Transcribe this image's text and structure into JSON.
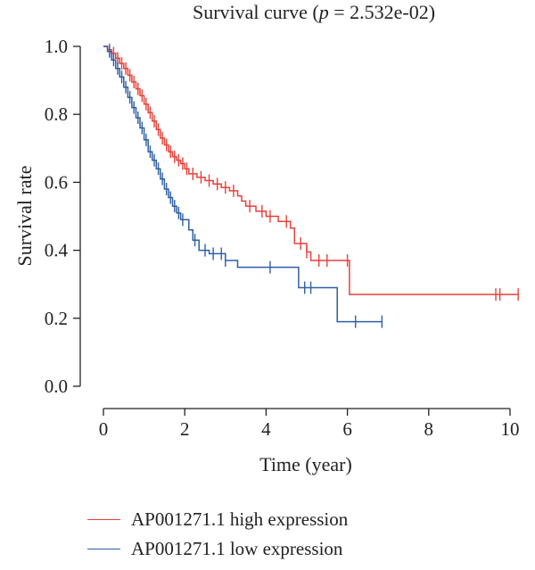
{
  "chart_data": {
    "type": "line",
    "title_prefix": "Survival curve (",
    "title_p": "p",
    "title_suffix": " = 2.532e-02)",
    "xlabel": "Time (year)",
    "ylabel": "Survival rate",
    "xlim": [
      0,
      10.3
    ],
    "ylim": [
      -0.02,
      1.02
    ],
    "xticks": [
      0,
      2,
      4,
      6,
      8,
      10
    ],
    "yticks": [
      0.0,
      0.2,
      0.4,
      0.6,
      0.8,
      1.0
    ],
    "ytick_labels": [
      "0.0",
      "0.2",
      "0.4",
      "0.6",
      "0.8",
      "1.0"
    ],
    "series": [
      {
        "name": "AP001271.1 high expression",
        "color": "#e8413b",
        "steps": [
          [
            0,
            1.0
          ],
          [
            0.1,
            0.99
          ],
          [
            0.2,
            0.98
          ],
          [
            0.3,
            0.965
          ],
          [
            0.4,
            0.95
          ],
          [
            0.5,
            0.935
          ],
          [
            0.6,
            0.915
          ],
          [
            0.7,
            0.895
          ],
          [
            0.8,
            0.875
          ],
          [
            0.9,
            0.855
          ],
          [
            1.0,
            0.83
          ],
          [
            1.1,
            0.805
          ],
          [
            1.2,
            0.78
          ],
          [
            1.3,
            0.755
          ],
          [
            1.4,
            0.73
          ],
          [
            1.5,
            0.71
          ],
          [
            1.6,
            0.69
          ],
          [
            1.7,
            0.675
          ],
          [
            1.8,
            0.665
          ],
          [
            1.9,
            0.655
          ],
          [
            2.0,
            0.64
          ],
          [
            2.1,
            0.625
          ],
          [
            2.3,
            0.615
          ],
          [
            2.5,
            0.605
          ],
          [
            2.7,
            0.595
          ],
          [
            2.9,
            0.585
          ],
          [
            3.1,
            0.575
          ],
          [
            3.3,
            0.56
          ],
          [
            3.4,
            0.545
          ],
          [
            3.5,
            0.53
          ],
          [
            3.75,
            0.515
          ],
          [
            4.0,
            0.5
          ],
          [
            4.3,
            0.485
          ],
          [
            4.6,
            0.465
          ],
          [
            4.7,
            0.42
          ],
          [
            5.0,
            0.395
          ],
          [
            5.1,
            0.37
          ],
          [
            6.05,
            0.27
          ]
        ],
        "censor_times": [
          0.15,
          0.25,
          0.35,
          0.45,
          0.55,
          0.65,
          0.75,
          0.85,
          0.95,
          1.05,
          1.15,
          1.25,
          1.35,
          1.45,
          1.55,
          1.65,
          1.75,
          1.85,
          1.95,
          2.05,
          2.2,
          2.4,
          2.6,
          2.8,
          3.0,
          3.2,
          3.6,
          3.9,
          4.1,
          4.5,
          4.85,
          5.0,
          5.3,
          5.5,
          6.0,
          9.65,
          9.75,
          10.2
        ],
        "end_time": 10.2
      },
      {
        "name": "AP001271.1 low expression",
        "color": "#2f5fa7",
        "steps": [
          [
            0,
            1.0
          ],
          [
            0.1,
            0.985
          ],
          [
            0.2,
            0.96
          ],
          [
            0.3,
            0.935
          ],
          [
            0.4,
            0.91
          ],
          [
            0.5,
            0.88
          ],
          [
            0.6,
            0.85
          ],
          [
            0.7,
            0.82
          ],
          [
            0.8,
            0.79
          ],
          [
            0.9,
            0.76
          ],
          [
            1.0,
            0.725
          ],
          [
            1.1,
            0.69
          ],
          [
            1.2,
            0.665
          ],
          [
            1.3,
            0.64
          ],
          [
            1.4,
            0.61
          ],
          [
            1.5,
            0.58
          ],
          [
            1.6,
            0.555
          ],
          [
            1.7,
            0.53
          ],
          [
            1.8,
            0.51
          ],
          [
            1.9,
            0.49
          ],
          [
            2.1,
            0.46
          ],
          [
            2.2,
            0.43
          ],
          [
            2.35,
            0.4
          ],
          [
            2.6,
            0.39
          ],
          [
            3.0,
            0.37
          ],
          [
            3.3,
            0.35
          ],
          [
            4.8,
            0.29
          ],
          [
            5.75,
            0.19
          ]
        ],
        "censor_times": [
          0.15,
          0.25,
          0.35,
          0.45,
          0.55,
          0.65,
          0.75,
          0.85,
          0.95,
          1.05,
          1.15,
          1.25,
          1.35,
          1.45,
          1.55,
          1.65,
          1.75,
          1.85,
          1.95,
          2.25,
          2.5,
          2.7,
          2.9,
          3.0,
          4.1,
          4.95,
          5.1,
          6.2,
          6.85
        ],
        "end_time": 6.85
      }
    ],
    "legend_position": "bottom-left"
  }
}
